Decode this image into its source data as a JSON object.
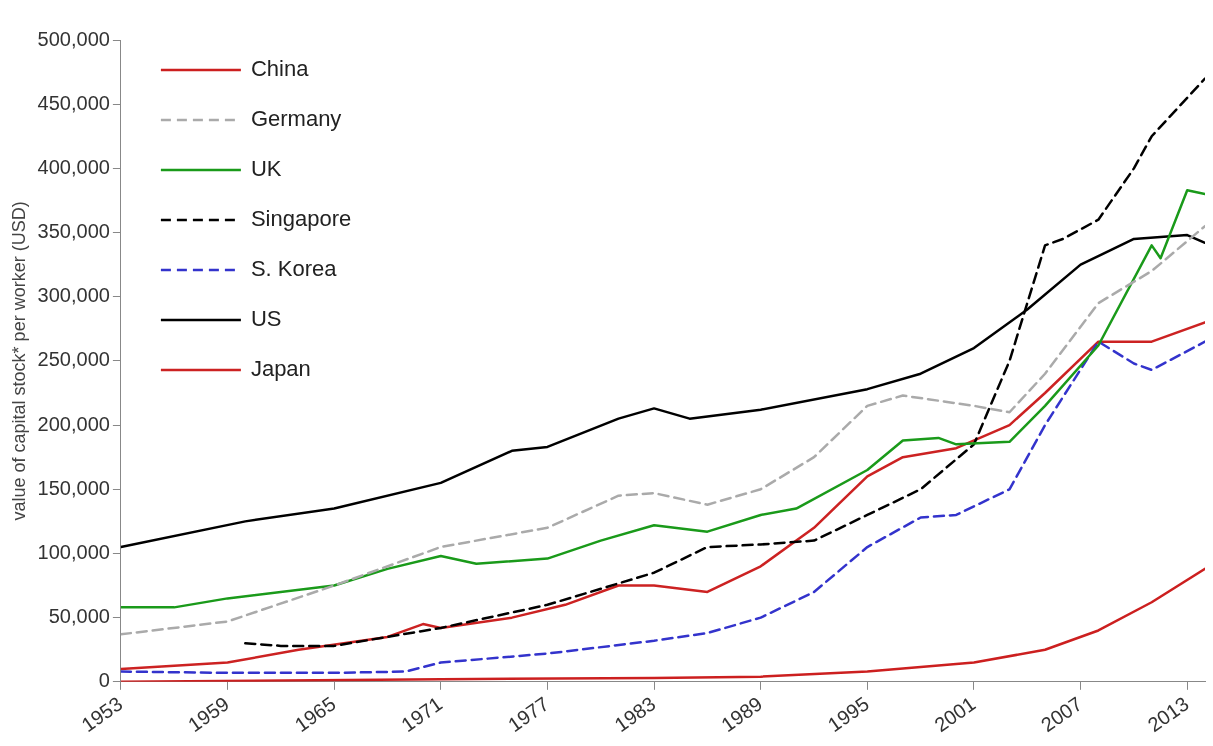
{
  "chart_data": {
    "type": "line",
    "ylabel": "value of capital stock* per worker (USD)",
    "xlim": [
      1953,
      2014
    ],
    "xticks": [
      1953,
      1959,
      1965,
      1971,
      1977,
      1983,
      1989,
      1995,
      2001,
      2007,
      2013
    ],
    "ylim": [
      0,
      500000
    ],
    "yticks": [
      {
        "value": 0,
        "label": "0"
      },
      {
        "value": 50000,
        "label": "50,000"
      },
      {
        "value": 100000,
        "label": "100,000"
      },
      {
        "value": 150000,
        "label": "150,000"
      },
      {
        "value": 200000,
        "label": "200,000"
      },
      {
        "value": 250000,
        "label": "250,000"
      },
      {
        "value": 300000,
        "label": "300,000"
      },
      {
        "value": 350000,
        "label": "350,000"
      },
      {
        "value": 400000,
        "label": "400,000"
      },
      {
        "value": 450000,
        "label": "450,000"
      },
      {
        "value": 500000,
        "label": "500,000"
      }
    ],
    "grid": false,
    "legend": "top left",
    "marker": "none",
    "series": [
      {
        "name": "China",
        "color": "#cc1f1f",
        "line_style": "solid",
        "x": [
          1953,
          1971,
          1983,
          1989,
          1995,
          2001,
          2005,
          2008,
          2011,
          2014
        ],
        "values": [
          0,
          2000,
          3000,
          4000,
          8000,
          15000,
          25000,
          40000,
          62000,
          88000
        ]
      },
      {
        "name": "Germany",
        "color": "#aaaaaa",
        "line_style": "dashed",
        "x": [
          1953,
          1959,
          1965,
          1971,
          1977,
          1981,
          1983,
          1986,
          1989,
          1992,
          1995,
          1997,
          2001,
          2003,
          2005,
          2008,
          2011,
          2014
        ],
        "values": [
          37000,
          47000,
          75000,
          105000,
          120000,
          145000,
          147000,
          138000,
          150000,
          175000,
          215000,
          223000,
          215000,
          210000,
          240000,
          295000,
          320000,
          355000
        ]
      },
      {
        "name": "UK",
        "color": "#1a9a1a",
        "line_style": "solid",
        "x": [
          1953,
          1956,
          1959,
          1965,
          1968,
          1971,
          1973,
          1977,
          1980,
          1983,
          1986,
          1989,
          1991,
          1995,
          1997,
          1999,
          2000,
          2003,
          2005,
          2008,
          2011,
          2011.5,
          2013,
          2014
        ],
        "values": [
          58000,
          58000,
          65000,
          75000,
          88000,
          98000,
          92000,
          96000,
          110000,
          122000,
          117000,
          130000,
          135000,
          165000,
          188000,
          190000,
          185000,
          187000,
          215000,
          262000,
          340000,
          330000,
          383000,
          380000
        ]
      },
      {
        "name": "Singapore",
        "color": "#000000",
        "line_style": "dashed",
        "x": [
          1960,
          1962,
          1965,
          1968,
          1971,
          1977,
          1983,
          1986,
          1989,
          1992,
          1995,
          1998,
          2001,
          2003,
          2005,
          2006,
          2008,
          2010,
          2011,
          2014
        ],
        "values": [
          30000,
          28000,
          28000,
          35000,
          42000,
          60000,
          85000,
          105000,
          107000,
          110000,
          130000,
          150000,
          185000,
          250000,
          340000,
          345000,
          360000,
          400000,
          425000,
          470000
        ]
      },
      {
        "name": "S. Korea",
        "color": "#3333cc",
        "line_style": "dashed",
        "x": [
          1953,
          1959,
          1965,
          1969,
          1971,
          1977,
          1983,
          1986,
          1989,
          1992,
          1995,
          1998,
          2000,
          2003,
          2005,
          2008,
          2010,
          2011,
          2014
        ],
        "values": [
          8000,
          7000,
          7000,
          8000,
          15000,
          22000,
          32000,
          38000,
          50000,
          70000,
          105000,
          128000,
          130000,
          150000,
          200000,
          265000,
          248000,
          243000,
          265000
        ]
      },
      {
        "name": "US",
        "color": "#000000",
        "line_style": "solid",
        "x": [
          1953,
          1960,
          1965,
          1971,
          1975,
          1977,
          1981,
          1983,
          1985,
          1989,
          1995,
          1998,
          2001,
          2004,
          2007,
          2010,
          2013,
          2014
        ],
        "values": [
          105000,
          125000,
          135000,
          155000,
          180000,
          183000,
          205000,
          213000,
          205000,
          212000,
          228000,
          240000,
          260000,
          290000,
          325000,
          345000,
          348000,
          342000
        ]
      },
      {
        "name": "Japan",
        "color": "#cc2222",
        "line_style": "solid",
        "x": [
          1953,
          1959,
          1963,
          1968,
          1970,
          1971,
          1975,
          1978,
          1981,
          1983,
          1986,
          1989,
          1992,
          1995,
          1997,
          2000,
          2003,
          2005,
          2008,
          2011,
          2014
        ],
        "values": [
          10000,
          15000,
          25000,
          35000,
          45000,
          42000,
          50000,
          60000,
          75000,
          75000,
          70000,
          90000,
          120000,
          160000,
          175000,
          182000,
          200000,
          225000,
          265000,
          265000,
          280000
        ]
      }
    ]
  }
}
